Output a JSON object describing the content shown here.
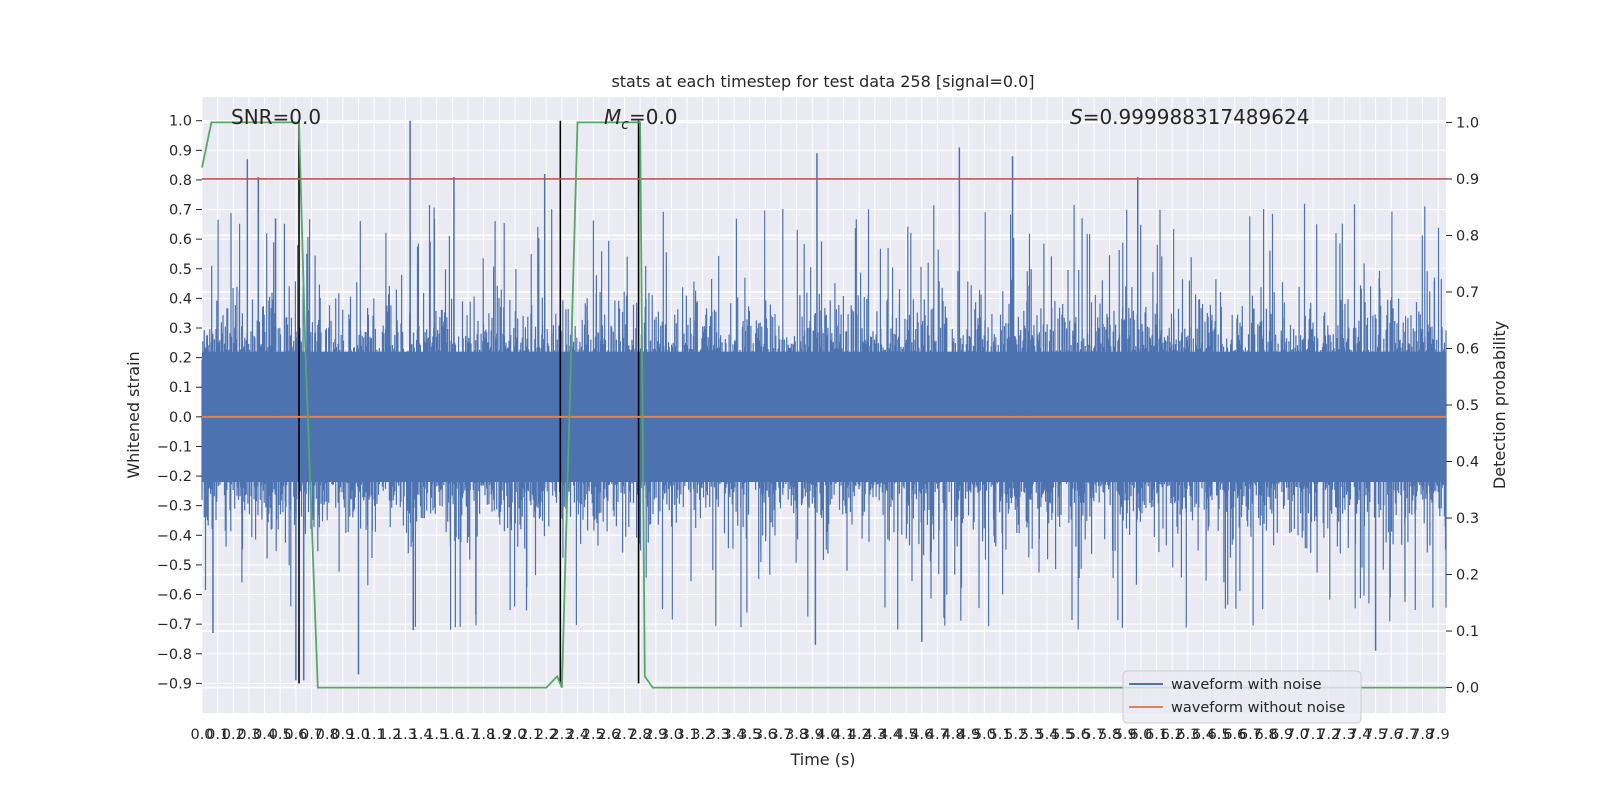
{
  "chart_data": {
    "type": "line",
    "title": "stats at each timestep for test data 258 [signal=0.0]",
    "xlabel": "Time (s)",
    "ylabel": "Whitened strain",
    "y2label": "Detection probability",
    "xlim": [
      0.0,
      7.95
    ],
    "ylim": [
      -1.0,
      1.08
    ],
    "y2lim": [
      -0.045,
      1.045
    ],
    "grid": true,
    "legend_position": "bottom-right",
    "annotations": {
      "snr": "SNR=0.0",
      "mc_symbol": "M",
      "mc_sub": "c",
      "mc_value": "=0.0",
      "s_symbol": "S",
      "s_value": "=0.999988317489624"
    },
    "x_ticks": [
      "0.0",
      "0.1",
      "0.2",
      "0.3",
      "0.4",
      "0.5",
      "0.6",
      "0.7",
      "0.8",
      "0.9",
      "1.0",
      "1.1",
      "1.2",
      "1.3",
      "1.4",
      "1.5",
      "1.6",
      "1.7",
      "1.8",
      "1.9",
      "2.0",
      "2.1",
      "2.2",
      "2.3",
      "2.4",
      "2.5",
      "2.6",
      "2.7",
      "2.8",
      "2.9",
      "3.0",
      "3.1",
      "3.2",
      "3.3",
      "3.4",
      "3.5",
      "3.6",
      "3.7",
      "3.8",
      "3.9",
      "4.0",
      "4.1",
      "4.2",
      "4.3",
      "4.4",
      "4.5",
      "4.6",
      "4.7",
      "4.8",
      "4.9",
      "5.0",
      "5.1",
      "5.2",
      "5.3",
      "5.4",
      "5.5",
      "5.6",
      "5.7",
      "5.8",
      "5.9",
      "6.0",
      "6.1",
      "6.2",
      "6.3",
      "6.4",
      "6.5",
      "6.6",
      "6.7",
      "6.8",
      "6.9",
      "7.0",
      "7.1",
      "7.2",
      "7.3",
      "7.4",
      "7.5",
      "7.6",
      "7.7",
      "7.8",
      "7.9"
    ],
    "y_ticks": [
      "−0.9",
      "−0.8",
      "−0.7",
      "−0.6",
      "−0.5",
      "−0.4",
      "−0.3",
      "−0.2",
      "−0.1",
      "0.0",
      "0.1",
      "0.2",
      "0.3",
      "0.4",
      "0.5",
      "0.6",
      "0.7",
      "0.8",
      "0.9",
      "1.0"
    ],
    "y2_ticks": [
      "0.0",
      "0.1",
      "0.2",
      "0.3",
      "0.4",
      "0.5",
      "0.6",
      "0.7",
      "0.8",
      "0.9",
      "1.0"
    ],
    "series": [
      {
        "name": "waveform with noise",
        "color": "#4c72b0",
        "envelope": {
          "typical_max": 0.35,
          "typical_min": -0.35
        },
        "spikes": [
          {
            "x": 0.29,
            "y": 0.87
          },
          {
            "x": 0.36,
            "y": 0.81
          },
          {
            "x": 0.47,
            "y": 0.67
          },
          {
            "x": 1.33,
            "y": 1.0
          },
          {
            "x": 1.61,
            "y": 0.81
          },
          {
            "x": 2.19,
            "y": 0.82
          },
          {
            "x": 3.93,
            "y": 0.89
          },
          {
            "x": 4.84,
            "y": 0.91
          },
          {
            "x": 5.18,
            "y": 0.88
          },
          {
            "x": 5.98,
            "y": 0.81
          },
          {
            "x": 0.65,
            "y": -0.89
          },
          {
            "x": 0.6,
            "y": -0.89
          },
          {
            "x": 1.0,
            "y": -0.87
          },
          {
            "x": 7.5,
            "y": -0.79
          },
          {
            "x": 3.92,
            "y": -0.77
          },
          {
            "x": 4.6,
            "y": -0.76
          },
          {
            "x": 1.35,
            "y": -0.72
          },
          {
            "x": 0.07,
            "y": -0.73
          }
        ]
      },
      {
        "name": "waveform without noise",
        "color": "#dd8452",
        "x": [
          0.0,
          7.95
        ],
        "y": [
          0.0,
          0.0
        ]
      },
      {
        "name": "",
        "color": "#55a868",
        "axis": "right",
        "x": [
          0.0,
          0.06,
          0.15,
          0.62,
          0.66,
          0.74,
          0.8,
          2.1,
          2.2,
          2.27,
          2.3,
          2.4,
          2.8,
          2.83,
          2.88,
          7.95
        ],
        "y": [
          0.92,
          1.0,
          1.0,
          1.0,
          0.6,
          0.0,
          0.0,
          0.0,
          0.0,
          0.02,
          0.0,
          1.0,
          1.0,
          0.02,
          0.0,
          0.0
        ]
      },
      {
        "name": "",
        "color": "#c44e52",
        "axis": "right",
        "x": [
          0.0,
          7.95
        ],
        "y": [
          0.9,
          0.9
        ]
      }
    ],
    "markers": [
      0.62,
      2.29,
      2.79
    ]
  }
}
